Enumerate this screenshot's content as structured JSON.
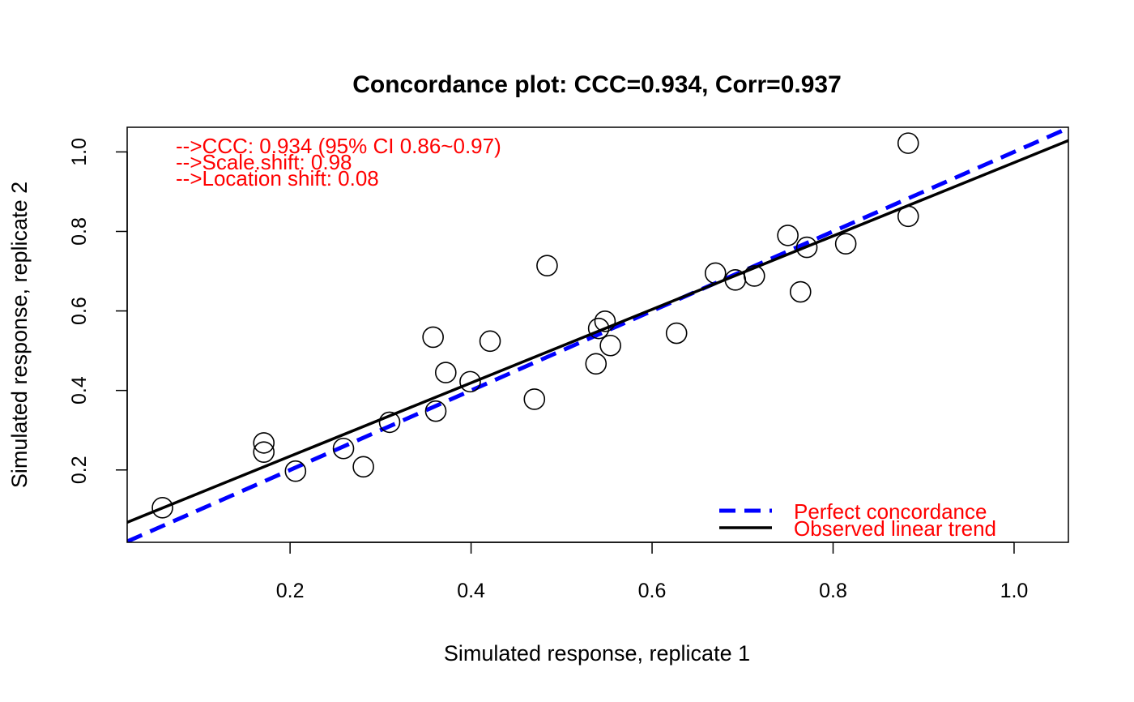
{
  "chart_data": {
    "type": "scatter",
    "title": "Concordance plot: CCC=0.934, Corr=0.937",
    "xlabel": "Simulated response, replicate 1",
    "ylabel": "Simulated response, replicate 2",
    "xlim": [
      0.02,
      1.06
    ],
    "ylim": [
      0.018,
      1.062
    ],
    "xticks": [
      0.2,
      0.4,
      0.6,
      0.8,
      1.0
    ],
    "xtick_labels": [
      "0.2",
      "0.4",
      "0.6",
      "0.8",
      "1.0"
    ],
    "yticks": [
      0.2,
      0.4,
      0.6,
      0.8,
      1.0
    ],
    "ytick_labels": [
      "0.2",
      "0.4",
      "0.6",
      "0.8",
      "1.0"
    ],
    "grid": false,
    "annotations": [
      "-->CCC: 0.934  (95% CI 0.86~0.97)",
      "-->Scale.shift: 0.98",
      "-->Location shift: 0.08"
    ],
    "points": [
      {
        "x": 0.059,
        "y": 0.105
      },
      {
        "x": 0.171,
        "y": 0.268
      },
      {
        "x": 0.171,
        "y": 0.245
      },
      {
        "x": 0.206,
        "y": 0.197
      },
      {
        "x": 0.259,
        "y": 0.254
      },
      {
        "x": 0.281,
        "y": 0.208
      },
      {
        "x": 0.31,
        "y": 0.32
      },
      {
        "x": 0.358,
        "y": 0.534
      },
      {
        "x": 0.361,
        "y": 0.348
      },
      {
        "x": 0.372,
        "y": 0.445
      },
      {
        "x": 0.399,
        "y": 0.422
      },
      {
        "x": 0.421,
        "y": 0.524
      },
      {
        "x": 0.47,
        "y": 0.378
      },
      {
        "x": 0.484,
        "y": 0.714
      },
      {
        "x": 0.538,
        "y": 0.467
      },
      {
        "x": 0.541,
        "y": 0.556
      },
      {
        "x": 0.548,
        "y": 0.574
      },
      {
        "x": 0.554,
        "y": 0.513
      },
      {
        "x": 0.627,
        "y": 0.544
      },
      {
        "x": 0.67,
        "y": 0.695
      },
      {
        "x": 0.692,
        "y": 0.678
      },
      {
        "x": 0.713,
        "y": 0.688
      },
      {
        "x": 0.75,
        "y": 0.79
      },
      {
        "x": 0.764,
        "y": 0.648
      },
      {
        "x": 0.771,
        "y": 0.76
      },
      {
        "x": 0.814,
        "y": 0.769
      },
      {
        "x": 0.883,
        "y": 1.022
      },
      {
        "x": 0.883,
        "y": 0.838
      }
    ],
    "lines": [
      {
        "name": "Perfect concordance",
        "style": "dashed",
        "color": "#0000ff",
        "intercept": 0.0,
        "slope": 1.0
      },
      {
        "name": "Observed linear trend",
        "style": "solid",
        "color": "#000000",
        "intercept": 0.0498,
        "slope": 0.9234
      }
    ],
    "legend": {
      "position": "bottom-right",
      "entries": [
        "Perfect concordance",
        "Observed linear trend"
      ]
    },
    "colors": {
      "points": "#000000",
      "annotations": "#ff0000",
      "legend_text": "#ff0000",
      "perfect_line": "#0000ff",
      "trend_line": "#000000"
    }
  }
}
